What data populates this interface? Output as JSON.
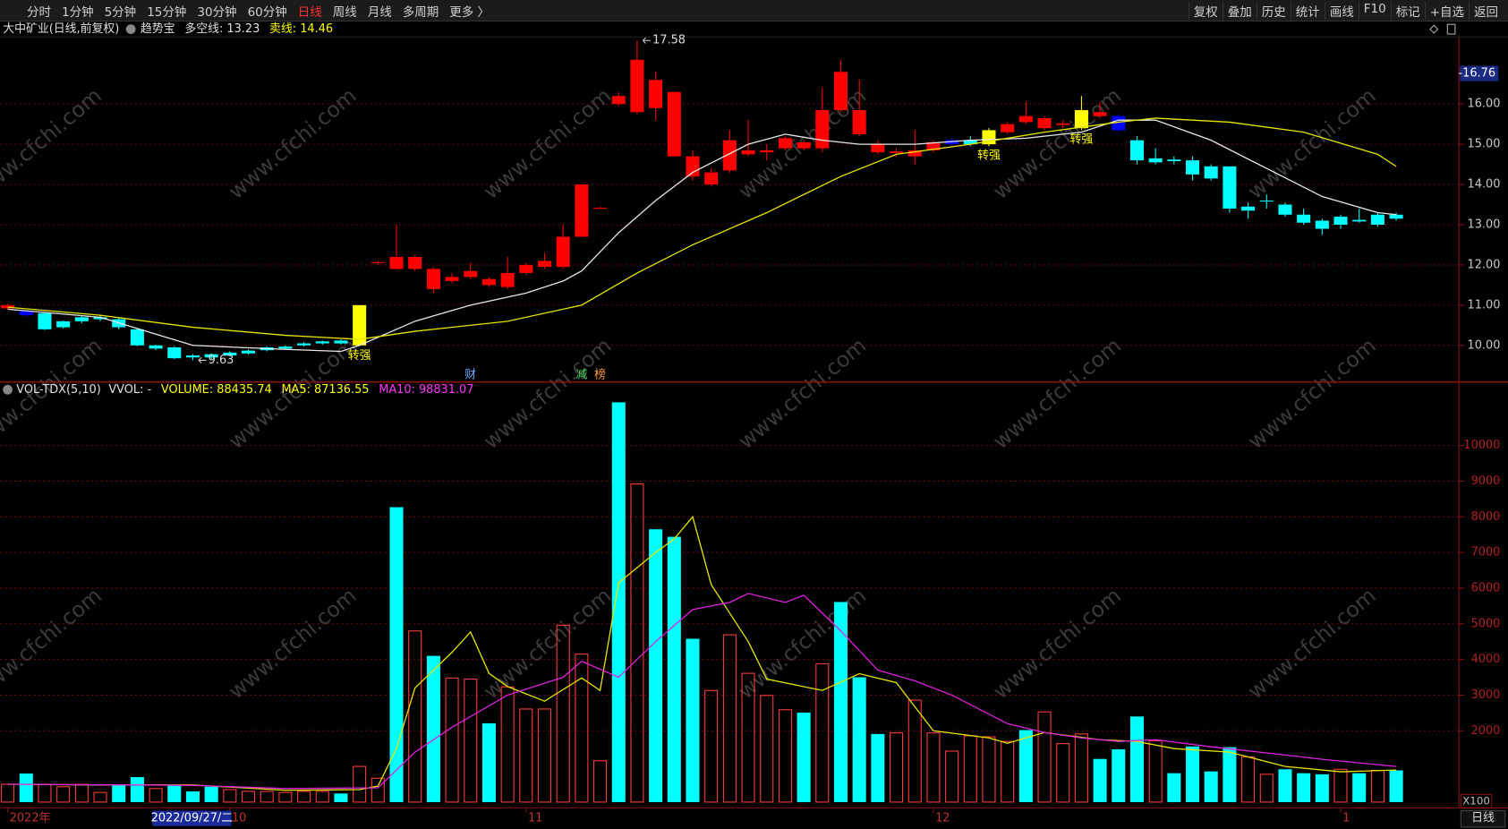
{
  "toolbar": {
    "left": [
      {
        "label": "分时"
      },
      {
        "label": "1分钟"
      },
      {
        "label": "5分钟"
      },
      {
        "label": "15分钟"
      },
      {
        "label": "30分钟"
      },
      {
        "label": "60分钟"
      },
      {
        "label": "日线",
        "active": true
      },
      {
        "label": "周线"
      },
      {
        "label": "月线"
      },
      {
        "label": "多周期"
      },
      {
        "label": "更多 〉"
      }
    ],
    "right": [
      "复权",
      "叠加",
      "历史",
      "统计",
      "画线",
      "F10",
      "标记",
      "+自选",
      "返回"
    ]
  },
  "header": [
    {
      "text": "大中矿业(日线,前复权)",
      "color": "#e0e0e0"
    },
    {
      "text": "趋势宝",
      "color": "#e0e0e0"
    },
    {
      "text": "多空线: 13.23",
      "color": "#e0e0e0"
    },
    {
      "text": "卖线: 14.46",
      "color": "#ffff00"
    }
  ],
  "watermark": "www.cfchi.com",
  "cursor_date": "2022/09/27/二",
  "period_label": "日线",
  "chart_data": [
    {
      "type": "candlestick",
      "open": [
        10.92,
        10.85,
        10.8,
        10.6,
        10.7,
        10.7,
        10.65,
        10.4,
        10.0,
        9.95,
        9.75,
        9.78,
        9.82,
        9.87,
        9.95,
        9.97,
        10.05,
        10.1,
        10.12,
        10.0,
        12.05,
        11.9,
        11.9,
        11.4,
        11.6,
        11.7,
        11.5,
        11.45,
        11.8,
        11.95,
        11.95,
        12.7,
        13.4,
        16.0,
        15.8,
        15.9,
        14.7,
        14.2,
        14.0,
        14.35,
        14.75,
        14.8,
        14.9,
        14.9,
        14.9,
        15.85,
        15.25,
        14.8,
        14.78,
        14.7,
        14.85,
        15.0,
        15.1,
        15.0,
        15.3,
        15.55,
        15.4,
        15.48,
        15.4,
        15.7,
        15.7,
        15.1,
        14.65,
        14.62,
        14.6,
        14.45,
        14.45,
        13.45,
        13.6,
        13.5,
        13.25,
        13.1,
        13.2,
        13.12,
        13.25,
        13.25
      ],
      "close": [
        11.0,
        10.75,
        10.4,
        10.45,
        10.6,
        10.65,
        10.45,
        10.0,
        9.92,
        9.68,
        9.7,
        9.7,
        9.75,
        9.8,
        9.88,
        9.92,
        10.0,
        10.05,
        10.05,
        11.0,
        12.07,
        12.2,
        12.2,
        11.9,
        11.7,
        11.85,
        11.65,
        11.8,
        12.0,
        12.1,
        12.7,
        14.0,
        13.42,
        16.2,
        17.1,
        16.6,
        16.3,
        14.7,
        14.3,
        15.1,
        14.85,
        14.85,
        15.15,
        15.05,
        15.85,
        16.8,
        15.85,
        15.0,
        14.82,
        14.85,
        15.05,
        15.1,
        15.0,
        15.35,
        15.5,
        15.7,
        15.65,
        15.52,
        15.85,
        15.8,
        15.35,
        14.6,
        14.55,
        14.58,
        14.25,
        14.15,
        13.4,
        13.35,
        13.58,
        13.25,
        13.05,
        12.9,
        13.0,
        13.08,
        13.0,
        13.15
      ],
      "high": [
        11.03,
        10.88,
        10.82,
        10.62,
        10.75,
        10.75,
        10.7,
        10.42,
        10.02,
        9.98,
        9.78,
        9.8,
        9.85,
        9.9,
        9.98,
        10.0,
        10.08,
        10.12,
        10.15,
        11.0,
        12.1,
        13.0,
        12.25,
        11.95,
        11.8,
        12.05,
        11.7,
        12.2,
        12.05,
        12.3,
        13.0,
        14.0,
        13.45,
        16.3,
        17.58,
        16.8,
        16.3,
        14.85,
        14.4,
        15.35,
        15.6,
        15.0,
        15.2,
        15.1,
        16.4,
        17.1,
        16.6,
        15.1,
        14.9,
        15.35,
        15.1,
        15.15,
        15.2,
        15.4,
        15.55,
        16.05,
        15.7,
        15.6,
        16.2,
        16.05,
        15.75,
        15.2,
        14.9,
        14.7,
        14.7,
        14.5,
        14.45,
        13.55,
        13.75,
        13.55,
        13.4,
        13.15,
        13.25,
        13.4,
        13.3,
        13.3
      ],
      "low": [
        10.9,
        10.72,
        10.38,
        10.42,
        10.55,
        10.6,
        10.4,
        9.98,
        9.88,
        9.66,
        9.63,
        9.66,
        9.72,
        9.77,
        9.85,
        9.9,
        9.97,
        10.02,
        10.02,
        9.98,
        12.0,
        11.88,
        11.85,
        11.3,
        11.55,
        11.65,
        11.45,
        11.4,
        11.75,
        11.9,
        11.9,
        12.7,
        13.4,
        15.95,
        15.75,
        15.6,
        14.7,
        14.1,
        13.95,
        14.3,
        14.7,
        14.6,
        14.85,
        14.85,
        14.8,
        15.8,
        15.2,
        14.75,
        14.7,
        14.5,
        14.8,
        14.95,
        14.95,
        14.95,
        15.25,
        15.5,
        15.35,
        15.4,
        15.35,
        15.65,
        15.3,
        14.5,
        14.5,
        14.5,
        14.1,
        14.1,
        13.3,
        13.15,
        13.4,
        13.2,
        13.0,
        12.75,
        12.9,
        13.05,
        12.95,
        13.1
      ],
      "colors": [
        "#ff0000",
        "#0000ff",
        "#00ffff",
        "#00ffff",
        "#00ffff",
        "#00ffff",
        "#00ffff",
        "#00ffff",
        "#00ffff",
        "#00ffff",
        "#00ffff",
        "#00ffff",
        "#00ffff",
        "#00ffff",
        "#00ffff",
        "#00ffff",
        "#00ffff",
        "#00ffff",
        "#00ffff",
        "#ffff00",
        "#ff0000",
        "#ff0000",
        "#ff0000",
        "#ff0000",
        "#ff0000",
        "#ff0000",
        "#ff0000",
        "#ff0000",
        "#ff0000",
        "#ff0000",
        "#ff0000",
        "#ff0000",
        "#ff0000",
        "#ff0000",
        "#ff0000",
        "#ff0000",
        "#ff0000",
        "#ff0000",
        "#ff0000",
        "#ff0000",
        "#ff0000",
        "#ff0000",
        "#ff0000",
        "#ff0000",
        "#ff0000",
        "#ff0000",
        "#ff0000",
        "#ff0000",
        "#ff0000",
        "#ff0000",
        "#ff0000",
        "#0000ff",
        "#00ffff",
        "#ffff00",
        "#ff0000",
        "#ff0000",
        "#ff0000",
        "#ff0000",
        "#ffff00",
        "#ff0000",
        "#0000ff",
        "#00ffff",
        "#00ffff",
        "#00ffff",
        "#00ffff",
        "#00ffff",
        "#00ffff",
        "#00ffff",
        "#00ffff",
        "#00ffff",
        "#00ffff",
        "#00ffff",
        "#00ffff",
        "#00ffff",
        "#00ffff",
        "#00ffff"
      ],
      "lines": [
        {
          "color": "#e8e8e8",
          "x": [
            0,
            5,
            10,
            15,
            18,
            19,
            22,
            25,
            28,
            30,
            31,
            33,
            35,
            37,
            40,
            42,
            44,
            46,
            49,
            52,
            55,
            58,
            60,
            62,
            65,
            68,
            71,
            74,
            75
          ],
          "values": [
            10.9,
            10.7,
            10.0,
            9.9,
            9.85,
            10.0,
            10.6,
            11.0,
            11.3,
            11.6,
            11.85,
            12.8,
            13.6,
            14.3,
            15.0,
            15.25,
            15.1,
            15.0,
            15.0,
            15.1,
            15.15,
            15.3,
            15.6,
            15.6,
            15.1,
            14.4,
            13.7,
            13.3,
            13.25
          ]
        },
        {
          "color": "#e6e600",
          "x": [
            0,
            5,
            10,
            15,
            19,
            22,
            27,
            31,
            34,
            37,
            41,
            45,
            48,
            52,
            56,
            60,
            62,
            66,
            70,
            74,
            75
          ],
          "values": [
            10.95,
            10.75,
            10.45,
            10.25,
            10.15,
            10.35,
            10.6,
            11.0,
            11.8,
            12.5,
            13.3,
            14.2,
            14.75,
            15.0,
            15.3,
            15.55,
            15.65,
            15.55,
            15.3,
            14.75,
            14.45
          ]
        }
      ],
      "annotations": [
        {
          "text": "17.58",
          "x": 34,
          "y": 17.58
        },
        {
          "text": "9.63",
          "x": 10,
          "y": 9.63
        }
      ],
      "signals": [
        {
          "text": "转强",
          "x": 19
        },
        {
          "text": "转强",
          "x": 53
        },
        {
          "text": "转强",
          "x": 58
        }
      ],
      "markers": [
        {
          "text": "财",
          "x": 25,
          "color": "#6ea8ff"
        },
        {
          "text": "减",
          "x": 31,
          "color": "#4cd964"
        },
        {
          "text": "榜",
          "x": 32,
          "color": "#ff9a3c"
        }
      ],
      "ylim": [
        9.09,
        17.67
      ],
      "yticks": [
        {
          "value": 10,
          "label": "10.00"
        },
        {
          "value": 11,
          "label": "11.00"
        },
        {
          "value": 12,
          "label": "12.00"
        },
        {
          "value": 13,
          "label": "13.00"
        },
        {
          "value": 14,
          "label": "14.00"
        },
        {
          "value": 15,
          "label": "15.00"
        },
        {
          "value": 16,
          "label": "16.00"
        }
      ],
      "price_marker": {
        "value": 16.76,
        "label": "16.76"
      },
      "grid": true
    },
    {
      "type": "bar",
      "title": "VOL-TDX(5,10)",
      "stats": [
        {
          "text": "VVOL: -",
          "color": "#e0e0e0"
        },
        {
          "text": "VOLUME: 88435.74",
          "color": "#ffff00"
        },
        {
          "text": "MA5: 87136.55",
          "color": "#ffff00"
        },
        {
          "text": "MA10: 98831.07",
          "color": "#ff33ff"
        }
      ],
      "categories": [
        "2022年",
        null,
        null,
        null,
        null,
        null,
        null,
        null,
        null,
        null,
        null,
        null,
        "10",
        null,
        null,
        null,
        null,
        null,
        null,
        null,
        null,
        null,
        null,
        null,
        null,
        null,
        null,
        null,
        "11",
        null,
        null,
        null,
        null,
        null,
        null,
        null,
        null,
        null,
        null,
        null,
        null,
        null,
        null,
        null,
        null,
        null,
        null,
        null,
        null,
        null,
        "12",
        null,
        null,
        null,
        null,
        null,
        null,
        null,
        null,
        null,
        null,
        null,
        null,
        null,
        null,
        null,
        null,
        null,
        null,
        null,
        null,
        null,
        "1",
        null,
        null,
        null
      ],
      "values": [
        500,
        800,
        500,
        430,
        500,
        270,
        500,
        700,
        380,
        460,
        300,
        430,
        350,
        300,
        300,
        270,
        300,
        300,
        240,
        1000,
        670,
        8270,
        4800,
        4100,
        3480,
        3450,
        2210,
        3230,
        2610,
        2610,
        4960,
        4150,
        1160,
        11210,
        8920,
        7650,
        7440,
        4580,
        3130,
        4690,
        3610,
        2990,
        2590,
        2510,
        3880,
        5610,
        3500,
        1910,
        1940,
        2860,
        1940,
        1430,
        1860,
        1830,
        1700,
        2020,
        2530,
        1640,
        1910,
        1210,
        1480,
        2400,
        1720,
        810,
        1560,
        860,
        1540,
        1270,
        780,
        920,
        810,
        780,
        920,
        810,
        890,
        890
      ],
      "colors": [
        "#ff3c3c",
        "#00ffff",
        "#ff3c3c",
        "#ff3c3c",
        "#ff3c3c",
        "#ff3c3c",
        "#00ffff",
        "#00ffff",
        "#ff3c3c",
        "#00ffff",
        "#00ffff",
        "#00ffff",
        "#ff3c3c",
        "#ff3c3c",
        "#ff3c3c",
        "#ff3c3c",
        "#ff3c3c",
        "#ff3c3c",
        "#00ffff",
        "#ff3c3c",
        "#ff3c3c",
        "#00ffff",
        "#ff3c3c",
        "#00ffff",
        "#ff3c3c",
        "#ff3c3c",
        "#00ffff",
        "#ff3c3c",
        "#ff3c3c",
        "#ff3c3c",
        "#ff3c3c",
        "#ff3c3c",
        "#ff3c3c",
        "#00ffff",
        "#ff3c3c",
        "#00ffff",
        "#00ffff",
        "#00ffff",
        "#ff3c3c",
        "#ff3c3c",
        "#ff3c3c",
        "#ff3c3c",
        "#ff3c3c",
        "#00ffff",
        "#ff3c3c",
        "#00ffff",
        "#00ffff",
        "#00ffff",
        "#ff3c3c",
        "#ff3c3c",
        "#ff3c3c",
        "#ff3c3c",
        "#ff3c3c",
        "#ff3c3c",
        "#ff3c3c",
        "#00ffff",
        "#ff3c3c",
        "#ff3c3c",
        "#ff3c3c",
        "#00ffff",
        "#00ffff",
        "#00ffff",
        "#ff3c3c",
        "#00ffff",
        "#00ffff",
        "#00ffff",
        "#00ffff",
        "#ff3c3c",
        "#ff3c3c",
        "#00ffff",
        "#00ffff",
        "#00ffff",
        "#ff3c3c",
        "#00ffff",
        "#ff3c3c",
        "#00ffff"
      ],
      "hollow_color": "#ff3c3c",
      "lines": [
        {
          "color": "#e6e600",
          "x": [
            0,
            5,
            10,
            15,
            19,
            20,
            21,
            22,
            24,
            25,
            26,
            27,
            29,
            31,
            32,
            33,
            35,
            36,
            37,
            38,
            40,
            41,
            44,
            46,
            48,
            50,
            53,
            54,
            56,
            59,
            61,
            63,
            66,
            69,
            72,
            75
          ],
          "values": [
            500,
            480,
            480,
            330,
            350,
            450,
            1500,
            3200,
            4200,
            4770,
            3610,
            3240,
            2830,
            3480,
            3130,
            6150,
            7000,
            7380,
            8000,
            6100,
            4500,
            3450,
            3130,
            3600,
            3350,
            2000,
            1800,
            1650,
            1950,
            1750,
            1700,
            1500,
            1400,
            1000,
            850,
            900
          ]
        },
        {
          "color": "#e020e0",
          "x": [
            0,
            10,
            15,
            20,
            22,
            24,
            27,
            30,
            31,
            33,
            35,
            37,
            39,
            40,
            42,
            43,
            45,
            47,
            49,
            51,
            54,
            56,
            58,
            60,
            62,
            65,
            68,
            71,
            74,
            75
          ],
          "values": [
            500,
            470,
            380,
            400,
            1400,
            2100,
            3000,
            3500,
            3950,
            3500,
            4500,
            5400,
            5600,
            5850,
            5600,
            5800,
            4800,
            3700,
            3400,
            3000,
            2200,
            1950,
            1800,
            1700,
            1750,
            1550,
            1380,
            1200,
            1050,
            1000
          ]
        }
      ],
      "ylim": [
        0,
        11700
      ],
      "yticks": [
        2000,
        3000,
        4000,
        5000,
        6000,
        7000,
        8000,
        9000,
        10000
      ],
      "unit": "X100",
      "grid": true
    }
  ]
}
